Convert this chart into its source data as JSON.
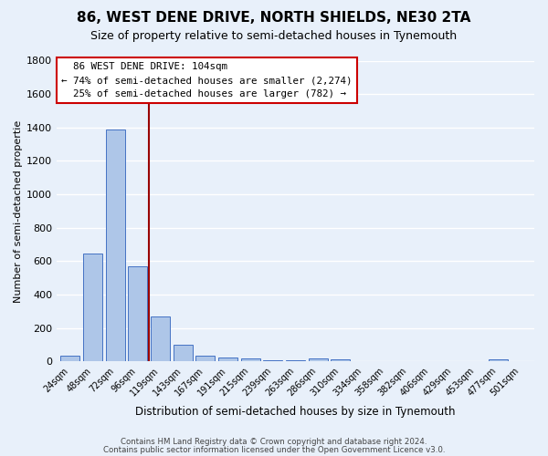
{
  "title": "86, WEST DENE DRIVE, NORTH SHIELDS, NE30 2TA",
  "subtitle": "Size of property relative to semi-detached houses in Tynemouth",
  "xlabel": "Distribution of semi-detached houses by size in Tynemouth",
  "ylabel": "Number of semi-detached propertie",
  "categories": [
    "24sqm",
    "48sqm",
    "72sqm",
    "96sqm",
    "119sqm",
    "143sqm",
    "167sqm",
    "191sqm",
    "215sqm",
    "239sqm",
    "263sqm",
    "286sqm",
    "310sqm",
    "334sqm",
    "358sqm",
    "382sqm",
    "406sqm",
    "429sqm",
    "453sqm",
    "477sqm",
    "501sqm"
  ],
  "values": [
    35,
    648,
    1390,
    570,
    270,
    103,
    35,
    25,
    18,
    10,
    5,
    18,
    12,
    0,
    0,
    0,
    0,
    0,
    0,
    12,
    0
  ],
  "bar_color": "#aec6e8",
  "bar_edge_color": "#4472c4",
  "background_color": "#e8f0fa",
  "grid_color": "#ffffff",
  "pct_smaller": 74,
  "pct_smaller_count": "2,274",
  "pct_larger": 25,
  "pct_larger_count": 782,
  "annotation_box_edge": "#cc0000",
  "redline_color": "#990000",
  "footnote1": "Contains HM Land Registry data © Crown copyright and database right 2024.",
  "footnote2": "Contains public sector information licensed under the Open Government Licence v3.0.",
  "ylim": [
    0,
    1800
  ],
  "title_fontsize": 11,
  "subtitle_fontsize": 9
}
